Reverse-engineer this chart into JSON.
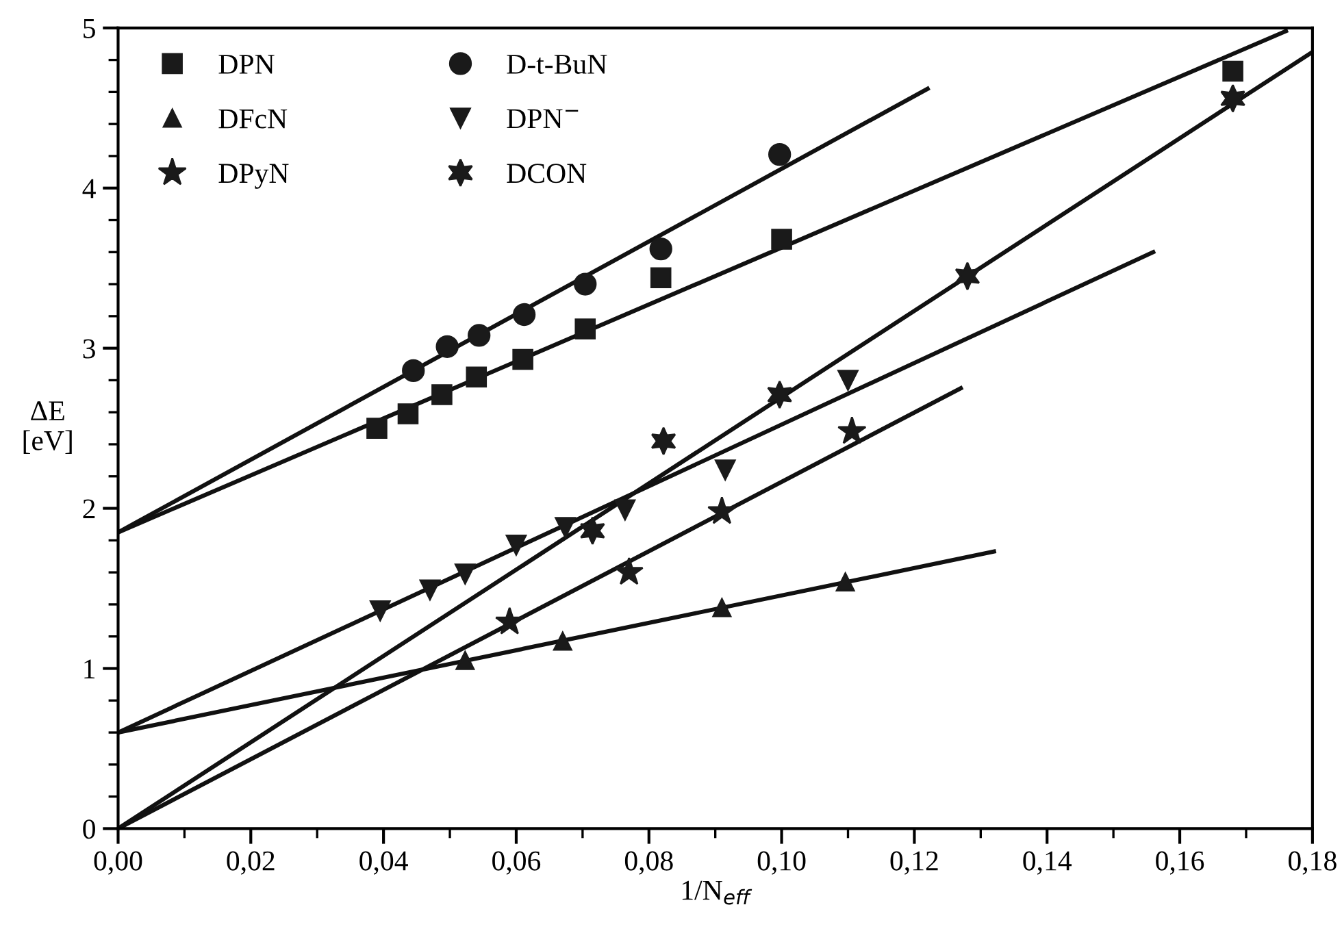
{
  "chart_data": {
    "type": "scatter",
    "xlabel": "1/N$_{eff}$",
    "ylabel": "ΔE\n[eV]",
    "xlim": [
      0,
      0.18
    ],
    "ylim": [
      0,
      5
    ],
    "xticks": [
      {
        "value": 0,
        "label": "0,00"
      },
      {
        "value": 0.02,
        "label": "0,02"
      },
      {
        "value": 0.04,
        "label": "0,04"
      },
      {
        "value": 0.06,
        "label": "0,06"
      },
      {
        "value": 0.08,
        "label": "0,08"
      },
      {
        "value": 0.1,
        "label": "0,10"
      },
      {
        "value": 0.12,
        "label": "0,12"
      },
      {
        "value": 0.14,
        "label": "0,14"
      },
      {
        "value": 0.16,
        "label": "0,16"
      },
      {
        "value": 0.18,
        "label": "0,18"
      }
    ],
    "yticks": [
      0,
      1,
      2,
      3,
      4,
      5
    ],
    "legend": "top left",
    "grid": false,
    "series": [
      {
        "name": "DPN",
        "marker": "square",
        "color": "#1a1a1a",
        "x": [
          0.039,
          0.0437,
          0.0488,
          0.054,
          0.061,
          0.0704,
          0.0818,
          0.1,
          0.168
        ],
        "values": [
          2.5,
          2.59,
          2.71,
          2.82,
          2.93,
          3.12,
          3.44,
          3.68,
          4.73
        ]
      },
      {
        "name": "DFcN",
        "marker": "triangle",
        "color": "#1a1a1a",
        "x": [
          0.0523,
          0.067,
          0.091,
          0.1096
        ],
        "values": [
          1.05,
          1.17,
          1.38,
          1.54
        ]
      },
      {
        "name": "DPyN",
        "marker": "star",
        "color": "#1a1a1a",
        "x": [
          0.059,
          0.077,
          0.091,
          0.1106
        ],
        "values": [
          1.29,
          1.6,
          1.98,
          2.48
        ]
      },
      {
        "name": "D-t-BuN",
        "marker": "circle",
        "color": "#1a1a1a",
        "x": [
          0.0445,
          0.0496,
          0.0544,
          0.0612,
          0.0704,
          0.0818,
          0.0997
        ],
        "values": [
          2.86,
          3.01,
          3.08,
          3.21,
          3.4,
          3.62,
          4.21
        ]
      },
      {
        "name": "DPN$^{−}$",
        "marker": "triangle_down",
        "color": "#1a1a1a",
        "x": [
          0.0395,
          0.047,
          0.0523,
          0.06,
          0.0674,
          0.0764,
          0.0915,
          0.11
        ],
        "values": [
          1.36,
          1.49,
          1.59,
          1.77,
          1.88,
          1.99,
          2.24,
          2.8
        ]
      },
      {
        "name": "DCON",
        "marker": "cross",
        "color": "#1a1a1a",
        "x": [
          0.0715,
          0.0822,
          0.0997,
          0.128,
          0.168
        ],
        "values": [
          1.86,
          2.42,
          2.71,
          3.45,
          4.56
        ]
      },
      {
        "type": "line",
        "color": "#111111",
        "x": [
          0,
          0.176
        ],
        "values": [
          1.85,
          4.98
        ]
      },
      {
        "type": "line",
        "color": "#111111",
        "x": [
          0,
          0.122
        ],
        "values": [
          1.85,
          4.62
        ]
      },
      {
        "type": "line",
        "color": "#111111",
        "x": [
          0,
          0.132
        ],
        "values": [
          0.6,
          1.73
        ]
      },
      {
        "type": "line",
        "color": "#111111",
        "x": [
          0,
          0.156
        ],
        "values": [
          0.6,
          3.6
        ]
      },
      {
        "type": "line",
        "color": "#111111",
        "x": [
          0,
          0.127
        ],
        "values": [
          0,
          2.75
        ]
      },
      {
        "type": "line",
        "color": "#111111",
        "x": [
          0,
          0.18
        ],
        "values": [
          0,
          4.85
        ]
      }
    ]
  }
}
